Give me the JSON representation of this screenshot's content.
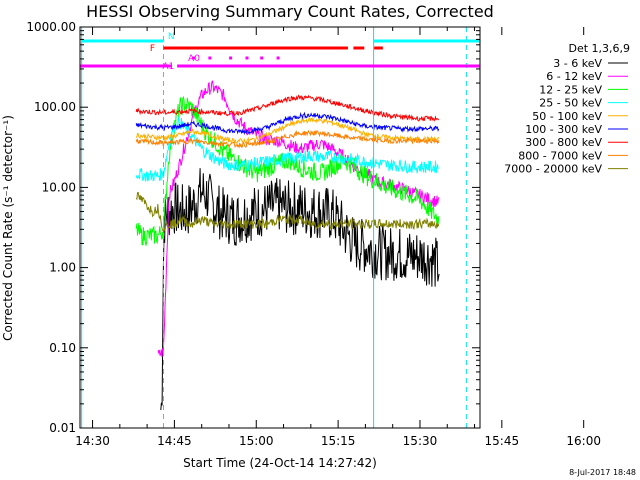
{
  "chart_data": {
    "type": "line",
    "title": "HESSI Observing Summary Count Rates, Corrected",
    "xlabel": "Start Time (24-Oct-14 14:27:42)",
    "ylabel": "Corrected Count Rate (s⁻¹ detector⁻¹)",
    "yscale": "log",
    "ylim": [
      0.01,
      1000
    ],
    "xlim_minutes_after_1430": [
      -2.3,
      71
    ],
    "x_ticks": [
      "14:30",
      "14:45",
      "15:00",
      "15:15",
      "15:30",
      "15:45",
      "16:00"
    ],
    "y_ticks": [
      "1000.00",
      "100.00",
      "10.00",
      "1.00",
      "0.10",
      "0.01"
    ],
    "legend_title": "Det 1,3,6,9",
    "legend_position": "top-right outside",
    "flag_labels": [
      "N",
      "F",
      "A0",
      "A1"
    ],
    "series": [
      {
        "name": "3 - 6 keV",
        "color": "#000000",
        "x": [
          12.5,
          12.7,
          13.0,
          13.2,
          13.5,
          14,
          15,
          16,
          17,
          18,
          19,
          20,
          21,
          22,
          24,
          26,
          28,
          30,
          32,
          34,
          36,
          38,
          40,
          42,
          44,
          46,
          48,
          50,
          52,
          54,
          56,
          58,
          60,
          62,
          63.5
        ],
        "y": [
          0.017,
          0.02,
          1.5,
          4,
          4.5,
          5,
          5.5,
          5,
          5,
          5.5,
          7,
          9,
          8,
          6,
          4.5,
          4,
          4.5,
          5,
          5.5,
          6,
          5.5,
          5.5,
          5,
          5,
          4.5,
          3,
          2,
          1.8,
          1.6,
          1.5,
          1.5,
          1.4,
          1.4,
          1.3,
          1.0
        ]
      },
      {
        "name": "6 - 12 keV",
        "color": "#ff00ff",
        "x": [
          12,
          13,
          14,
          15,
          16,
          17,
          18,
          19,
          20,
          21,
          22,
          23,
          24,
          26,
          28,
          30,
          32,
          34,
          36,
          38,
          40,
          42,
          44,
          46,
          48,
          50,
          52,
          54,
          56,
          58,
          60,
          62,
          63.5
        ],
        "y": [
          0.08,
          0.09,
          8,
          12,
          20,
          35,
          60,
          100,
          140,
          165,
          180,
          160,
          140,
          75,
          55,
          45,
          40,
          38,
          34,
          30,
          33,
          35,
          30,
          24,
          18,
          15,
          12,
          11,
          10,
          9,
          8,
          7,
          6.5
        ]
      },
      {
        "name": "12 - 25 keV",
        "color": "#00ff00",
        "x": [
          8,
          9,
          10,
          11,
          12,
          13,
          14,
          15,
          16,
          17,
          18,
          19,
          20,
          21,
          22,
          24,
          26,
          28,
          30,
          32,
          34,
          36,
          38,
          40,
          42,
          44,
          46,
          48,
          50,
          52,
          54,
          56,
          58,
          60,
          62,
          63.5
        ],
        "y": [
          3,
          2.5,
          2.5,
          2.5,
          2.5,
          3,
          25,
          60,
          100,
          110,
          100,
          80,
          60,
          45,
          40,
          28,
          22,
          18,
          15,
          17,
          20,
          22,
          18,
          16,
          15,
          18,
          22,
          18,
          14,
          12,
          10,
          9,
          8,
          7,
          5,
          4
        ]
      },
      {
        "name": "25 - 50 keV",
        "color": "#00ffff",
        "x": [
          8,
          10,
          12,
          13,
          14,
          15,
          16,
          18,
          20,
          22,
          24,
          26,
          28,
          30,
          32,
          34,
          36,
          38,
          40,
          42,
          44,
          46,
          48,
          50,
          52,
          54,
          56,
          58,
          60,
          62,
          63.5
        ],
        "y": [
          15,
          14,
          14,
          15,
          35,
          60,
          65,
          45,
          30,
          24,
          20,
          19,
          19,
          20,
          21,
          22,
          23,
          24,
          25,
          24,
          24,
          23,
          22,
          21,
          20,
          19,
          19,
          18,
          18,
          18,
          18
        ]
      },
      {
        "name": "50 - 100 keV",
        "color": "#ffb000",
        "x": [
          8,
          10,
          12,
          14,
          16,
          18,
          20,
          22,
          24,
          26,
          28,
          30,
          32,
          34,
          36,
          38,
          40,
          42,
          44,
          46,
          48,
          50,
          52,
          54,
          56,
          58,
          60,
          62,
          63.5
        ],
        "y": [
          45,
          43,
          42,
          42,
          45,
          50,
          48,
          44,
          40,
          38,
          38,
          40,
          45,
          52,
          60,
          66,
          70,
          68,
          64,
          58,
          52,
          46,
          44,
          42,
          41,
          40,
          40,
          40,
          40
        ]
      },
      {
        "name": "100 - 300 keV",
        "color": "#0000ff",
        "x": [
          8,
          10,
          12,
          14,
          16,
          18,
          20,
          22,
          24,
          26,
          28,
          30,
          32,
          34,
          36,
          38,
          40,
          42,
          44,
          46,
          48,
          50,
          52,
          54,
          56,
          58,
          60,
          62,
          63.5
        ],
        "y": [
          60,
          58,
          56,
          56,
          58,
          62,
          60,
          56,
          52,
          50,
          50,
          52,
          56,
          64,
          72,
          78,
          80,
          78,
          74,
          68,
          62,
          58,
          56,
          55,
          54,
          54,
          54,
          54,
          54
        ]
      },
      {
        "name": "300 - 800 keV",
        "color": "#ff0000",
        "x": [
          8,
          10,
          12,
          14,
          16,
          18,
          20,
          22,
          24,
          26,
          28,
          30,
          32,
          34,
          36,
          38,
          40,
          42,
          44,
          46,
          48,
          50,
          52,
          54,
          56,
          58,
          60,
          62,
          63.5
        ],
        "y": [
          90,
          88,
          86,
          86,
          88,
          90,
          88,
          86,
          84,
          84,
          88,
          95,
          105,
          118,
          128,
          132,
          130,
          124,
          115,
          106,
          98,
          90,
          84,
          80,
          76,
          74,
          72,
          72,
          72
        ]
      },
      {
        "name": "800 - 7000 keV",
        "color": "#ff7f00",
        "x": [
          8,
          10,
          12,
          14,
          16,
          18,
          20,
          22,
          24,
          26,
          28,
          30,
          32,
          34,
          36,
          38,
          40,
          42,
          44,
          46,
          48,
          50,
          52,
          54,
          56,
          58,
          60,
          62,
          63.5
        ],
        "y": [
          38,
          37,
          36,
          36,
          37,
          38,
          37,
          36,
          35,
          34,
          34,
          35,
          37,
          40,
          44,
          47,
          48,
          47,
          45,
          43,
          41,
          40,
          39,
          38,
          38,
          38,
          38,
          38,
          38
        ]
      },
      {
        "name": "7000 - 20000 keV",
        "color": "#808000",
        "x": [
          8,
          9,
          10,
          11,
          12,
          13,
          14,
          15,
          16,
          18,
          20,
          22,
          24,
          26,
          28,
          30,
          32,
          34,
          36,
          38,
          40,
          42,
          44,
          46,
          48,
          50,
          52,
          54,
          56,
          58,
          60,
          62,
          63.5
        ],
        "y": [
          8,
          7,
          6,
          5,
          5.5,
          3,
          3.5,
          3.5,
          4,
          3.5,
          4,
          3.5,
          3.5,
          3.5,
          3.5,
          3.5,
          3.5,
          4,
          4,
          4,
          3.5,
          3.5,
          3.5,
          3.5,
          3.5,
          3.5,
          3.5,
          3.5,
          3.5,
          3.5,
          3.5,
          3.5,
          3.5
        ]
      }
    ]
  },
  "timestamp": "8-Jul-2017 18:48"
}
